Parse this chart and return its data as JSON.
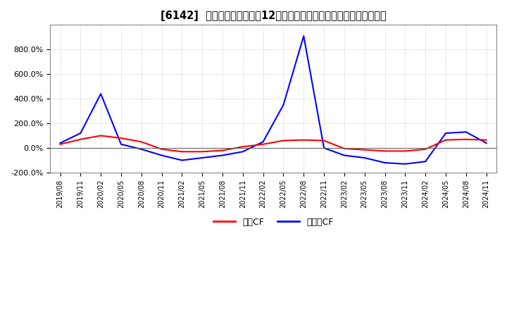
{
  "title": "[6142]  キャッシュフローの12か月移動合計の対前年同期増減率の推移",
  "legend_label_operating": "営業CF",
  "legend_label_free": "フリーCF",
  "line_color_operating": "#ff0000",
  "line_color_free": "#0000ff",
  "background_color": "#ffffff",
  "grid_color": "#aaaaaa",
  "ylim_min": -200,
  "ylim_max": 1000,
  "yticks": [
    -200,
    0,
    200,
    400,
    600,
    800
  ],
  "ytick_labels": [
    "-200.0%",
    "0.0%",
    "200.0%",
    "400.0%",
    "600.0%",
    "800.0%"
  ],
  "dates": [
    "2019/08",
    "2019/11",
    "2020/02",
    "2020/05",
    "2020/08",
    "2020/11",
    "2021/02",
    "2021/05",
    "2021/08",
    "2021/11",
    "2022/02",
    "2022/05",
    "2022/08",
    "2022/11",
    "2023/02",
    "2023/05",
    "2023/08",
    "2023/11",
    "2024/02",
    "2024/05",
    "2024/08",
    "2024/11"
  ],
  "operating_cf": [
    30,
    70,
    100,
    80,
    50,
    -10,
    -30,
    -30,
    -20,
    10,
    30,
    60,
    65,
    60,
    -5,
    -15,
    -25,
    -25,
    -10,
    65,
    70,
    65
  ],
  "free_cf": [
    40,
    120,
    440,
    30,
    -10,
    -60,
    -100,
    -80,
    -60,
    -30,
    50,
    350,
    910,
    0,
    -60,
    -80,
    -120,
    -130,
    -110,
    120,
    130,
    40
  ]
}
